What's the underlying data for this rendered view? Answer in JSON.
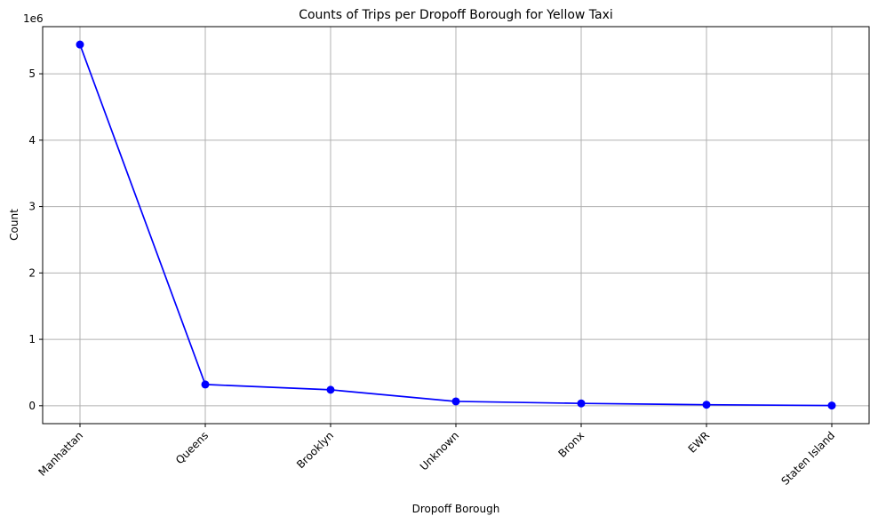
{
  "chart_data": {
    "type": "line",
    "title": "Counts of Trips per Dropoff Borough for Yellow Taxi",
    "xlabel": "Dropoff Borough",
    "ylabel": "Count",
    "y_offset_label": "1e6",
    "categories": [
      "Manhattan",
      "Queens",
      "Brooklyn",
      "Unknown",
      "Bronx",
      "EWR",
      "Staten Island"
    ],
    "values": [
      5440000,
      320000,
      240000,
      65000,
      35000,
      15000,
      3000
    ],
    "ylim": [
      -270000,
      5710000
    ],
    "y_ticks": [
      0,
      1000000,
      2000000,
      3000000,
      4000000,
      5000000
    ],
    "y_tick_labels": [
      "0",
      "1",
      "2",
      "3",
      "4",
      "5"
    ],
    "x_tick_rotation": -45,
    "grid": true,
    "marker": "circle",
    "color": "#0000ff"
  }
}
